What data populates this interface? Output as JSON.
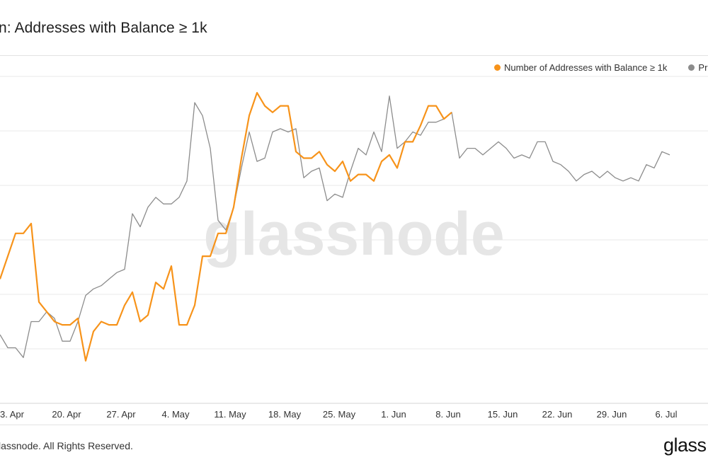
{
  "title": "n: Addresses with Balance ≥ 1k",
  "watermark": "glassnode",
  "footer": "lassnode. All Rights Reserved.",
  "brand": "glass",
  "colors": {
    "addresses": "#f7931a",
    "price": "#8c8c8c",
    "grid": "#e8e8e8"
  },
  "chart_data": {
    "type": "line",
    "title": "n: Addresses with Balance ≥ 1k",
    "x_ticks": [
      "3. Apr",
      "20. Apr",
      "27. Apr",
      "4. May",
      "11. May",
      "18. May",
      "25. May",
      "1. Jun",
      "8. Jun",
      "15. Jun",
      "22. Jun",
      "29. Jun",
      "6. Jul"
    ],
    "x_start": "2020-04-13",
    "grid": true,
    "legend": "top-right",
    "y_scale": "normalized 0-100 (axis labels not visible)",
    "series": [
      {
        "name": "Number of Addresses with Balance ≥ 1k",
        "color": "#f7931a",
        "values": [
          38,
          45,
          52,
          52,
          55,
          31,
          28,
          25,
          24,
          24,
          26,
          13,
          22,
          25,
          24,
          24,
          30,
          34,
          25,
          27,
          37,
          35,
          42,
          24,
          24,
          30,
          45,
          45,
          52,
          52,
          60,
          75,
          88,
          95,
          91,
          89,
          91,
          91,
          77,
          75,
          75,
          77,
          73,
          71,
          74,
          68,
          70,
          70,
          68,
          74,
          76,
          72,
          80,
          80,
          85,
          91,
          91,
          87,
          89
        ]
      },
      {
        "name": "Pric",
        "color": "#8c8c8c",
        "values": [
          21,
          17,
          17,
          14,
          25,
          25,
          28,
          26,
          19,
          19,
          25,
          33,
          35,
          36,
          38,
          40,
          41,
          58,
          54,
          60,
          63,
          61,
          61,
          63,
          68,
          92,
          88,
          78,
          56,
          53,
          60,
          72,
          83,
          74,
          75,
          83,
          84,
          83,
          84,
          69,
          71,
          72,
          62,
          64,
          63,
          71,
          78,
          76,
          83,
          77,
          94,
          78,
          80,
          83,
          82,
          86,
          86,
          87,
          89,
          75,
          78,
          78,
          76,
          78,
          80,
          78,
          75,
          76,
          75,
          80,
          80,
          74,
          73,
          71,
          68,
          70,
          71,
          69,
          71,
          69,
          68,
          69,
          68,
          73,
          72,
          77,
          76
        ]
      }
    ]
  }
}
